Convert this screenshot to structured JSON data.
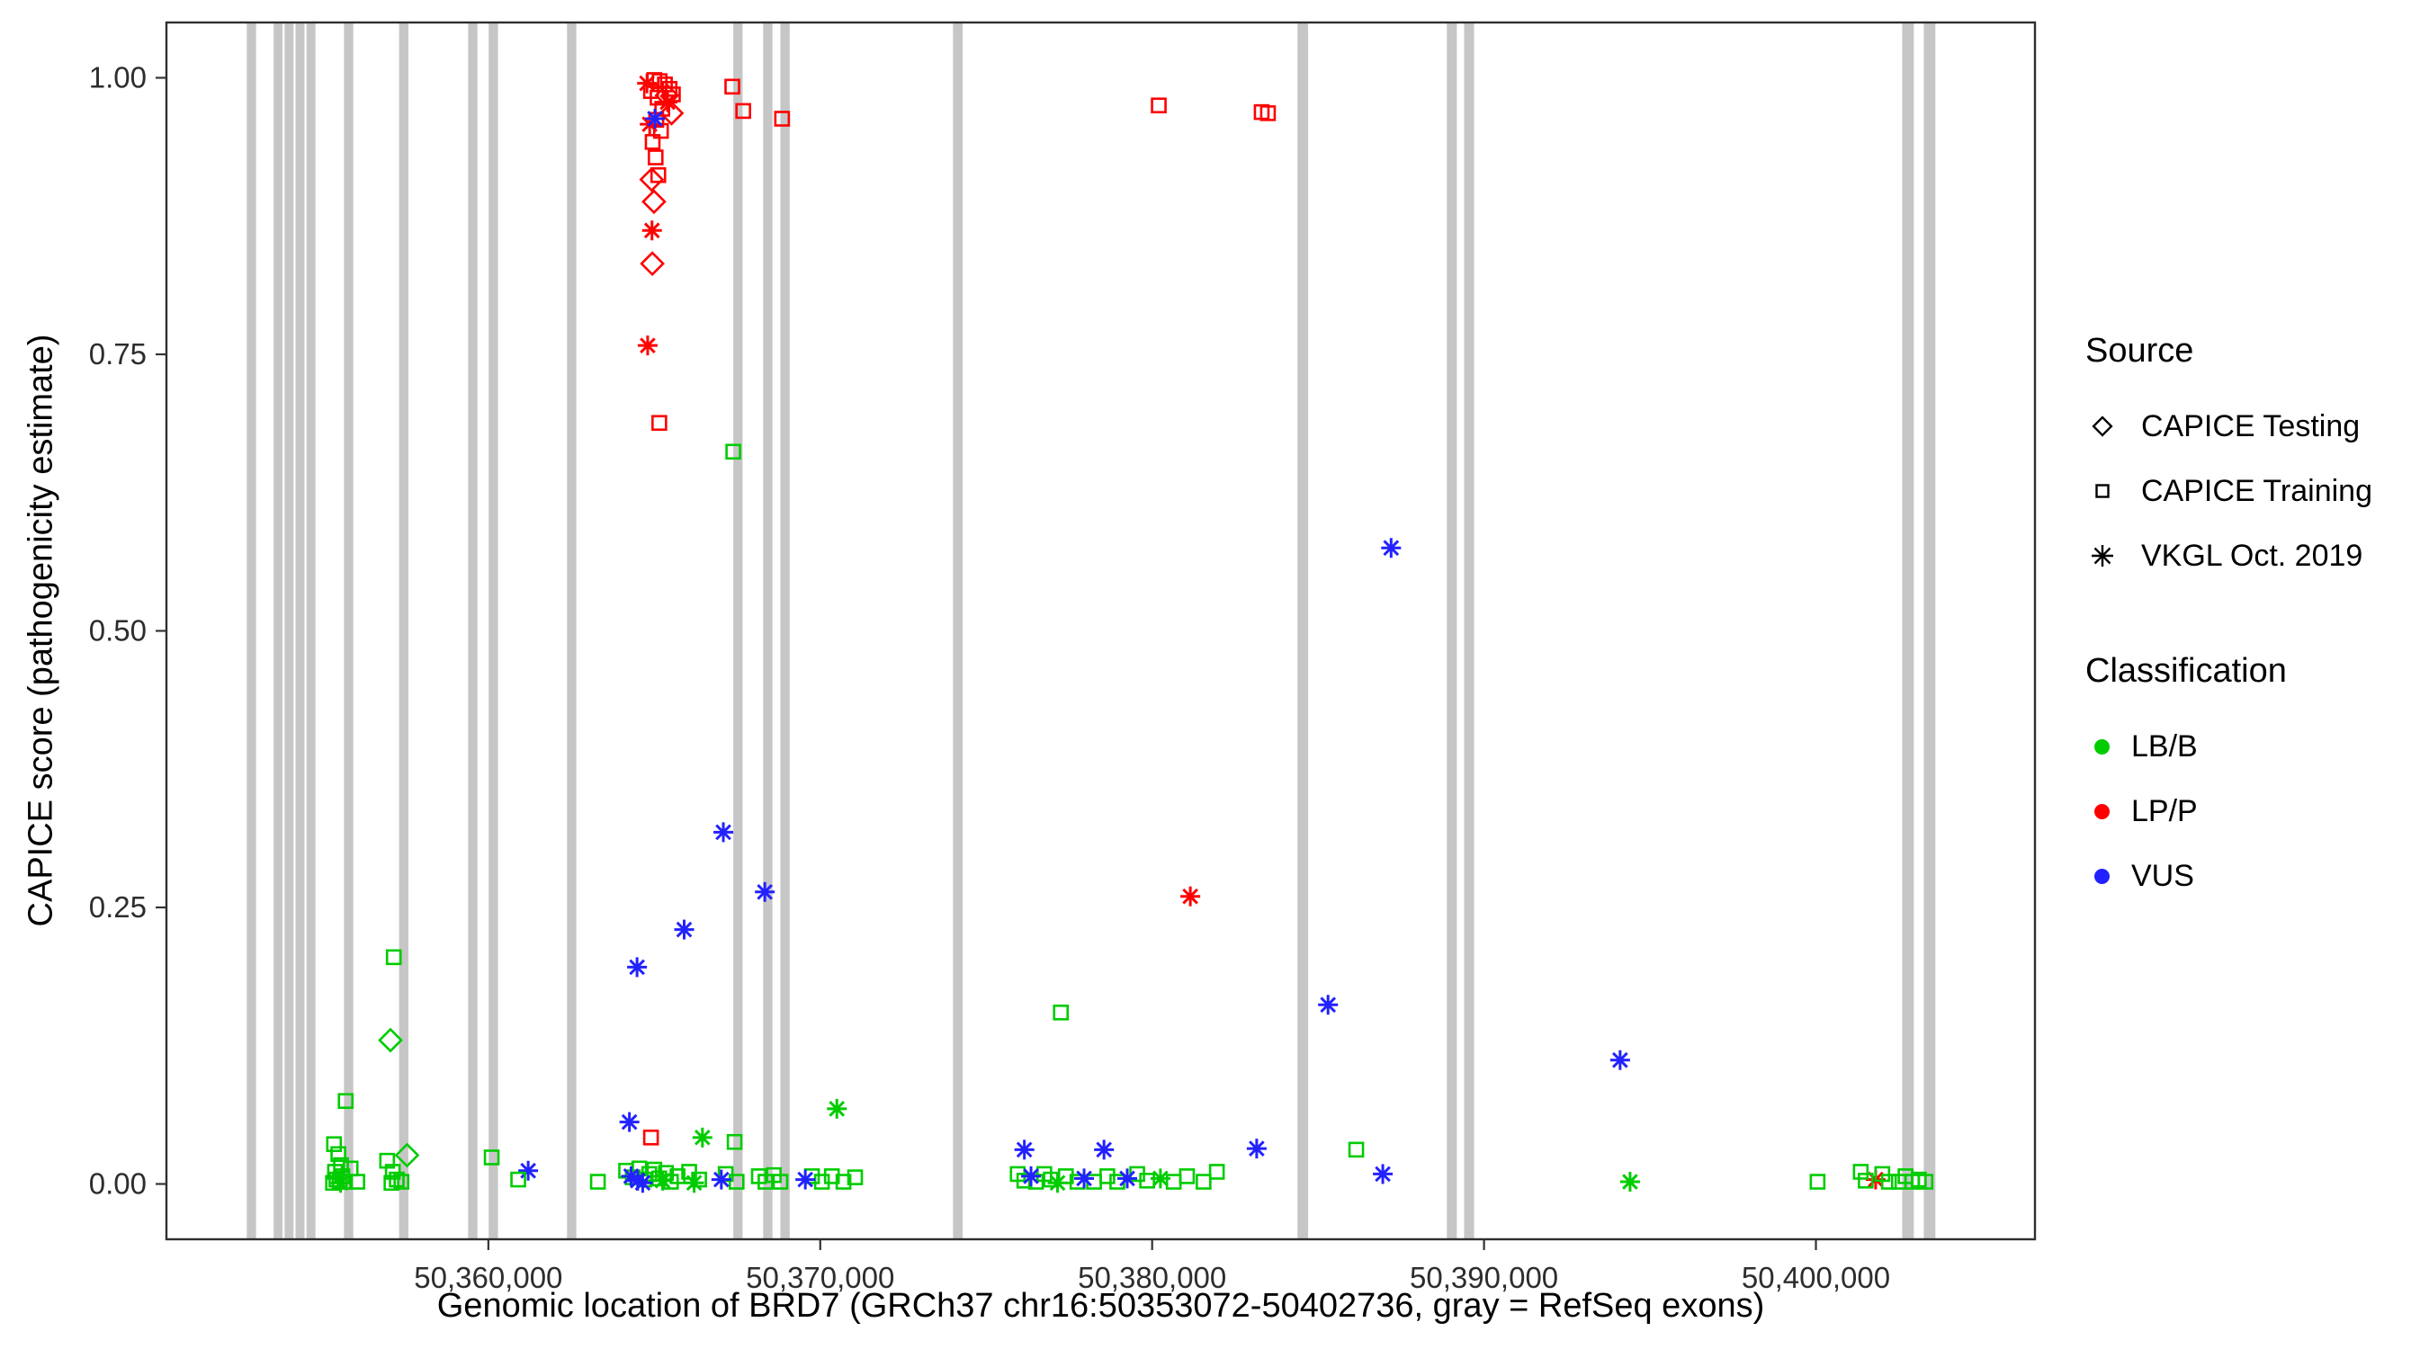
{
  "chart_data": {
    "type": "scatter",
    "title": "",
    "xlabel": "Genomic location of BRD7 (GRCh37 chr16:50353072-50402736, gray = RefSeq exons)",
    "ylabel": "CAPICE score (pathogenicity estimate)",
    "xlim": [
      50350300,
      50406600
    ],
    "ylim": [
      -0.05,
      1.05
    ],
    "grid": "off",
    "legend_position": "right",
    "x_ticks": [
      {
        "value": 50360000,
        "label": "50,360,000"
      },
      {
        "value": 50370000,
        "label": "50,370,000"
      },
      {
        "value": 50380000,
        "label": "50,380,000"
      },
      {
        "value": 50390000,
        "label": "50,390,000"
      },
      {
        "value": 50400000,
        "label": "50,400,000"
      }
    ],
    "y_ticks": [
      {
        "value": 0.0,
        "label": "0.00"
      },
      {
        "value": 0.25,
        "label": "0.25"
      },
      {
        "value": 0.5,
        "label": "0.50"
      },
      {
        "value": 0.75,
        "label": "0.75"
      },
      {
        "value": 1.0,
        "label": "1.00"
      }
    ],
    "exon_color": "#c6c6c6",
    "border_color": "#2e2e2e",
    "exons": [
      [
        50352720,
        50353000
      ],
      [
        50353530,
        50353800
      ],
      [
        50353860,
        50354130
      ],
      [
        50354190,
        50354460
      ],
      [
        50354520,
        50354790
      ],
      [
        50355650,
        50355930
      ],
      [
        50357310,
        50357590
      ],
      [
        50359390,
        50359670
      ],
      [
        50360010,
        50360290
      ],
      [
        50362370,
        50362650
      ],
      [
        50367380,
        50367660
      ],
      [
        50368280,
        50368560
      ],
      [
        50368800,
        50369080
      ],
      [
        50374000,
        50374290
      ],
      [
        50384380,
        50384700
      ],
      [
        50388880,
        50389180
      ],
      [
        50389400,
        50389700
      ],
      [
        50402600,
        50402950
      ],
      [
        50403250,
        50403600
      ]
    ],
    "source_codes": {
      "d": "CAPICE Testing",
      "s": "CAPICE Training",
      "a": "VKGL Oct. 2019"
    },
    "shape_by_code": {
      "d": "diamond",
      "s": "square",
      "a": "asterisk"
    },
    "class_codes": {
      "B": "LB/B",
      "P": "LP/P",
      "V": "VUS"
    },
    "class_colors": {
      "B": "#00cc00",
      "P": "#ff0000",
      "V": "#2222ff"
    },
    "points": [
      [
        50365000,
        0.998,
        "s",
        "P"
      ],
      [
        50365160,
        0.997,
        "s",
        "P"
      ],
      [
        50365320,
        0.994,
        "s",
        "P"
      ],
      [
        50365460,
        0.99,
        "s",
        "P"
      ],
      [
        50364900,
        0.988,
        "s",
        "P"
      ],
      [
        50365100,
        0.982,
        "s",
        "P"
      ],
      [
        50365560,
        0.985,
        "s",
        "P"
      ],
      [
        50365240,
        0.972,
        "s",
        "P"
      ],
      [
        50365060,
        0.962,
        "s",
        "P"
      ],
      [
        50365200,
        0.952,
        "s",
        "P"
      ],
      [
        50364950,
        0.942,
        "s",
        "P"
      ],
      [
        50365040,
        0.928,
        "s",
        "P"
      ],
      [
        50365120,
        0.912,
        "s",
        "P"
      ],
      [
        50365150,
        0.688,
        "s",
        "P"
      ],
      [
        50365380,
        0.984,
        "d",
        "P"
      ],
      [
        50365520,
        0.968,
        "d",
        "P"
      ],
      [
        50364920,
        0.908,
        "d",
        "P"
      ],
      [
        50364990,
        0.888,
        "d",
        "P"
      ],
      [
        50364940,
        0.832,
        "d",
        "P"
      ],
      [
        50364780,
        0.995,
        "a",
        "P"
      ],
      [
        50365400,
        0.978,
        "a",
        "P"
      ],
      [
        50364860,
        0.958,
        "a",
        "P"
      ],
      [
        50364930,
        0.862,
        "a",
        "P"
      ],
      [
        50364800,
        0.758,
        "a",
        "P"
      ],
      [
        50365020,
        0.963,
        "a",
        "V"
      ],
      [
        50367350,
        0.992,
        "s",
        "P"
      ],
      [
        50367680,
        0.97,
        "s",
        "P"
      ],
      [
        50368850,
        0.963,
        "s",
        "P"
      ],
      [
        50380200,
        0.975,
        "s",
        "P"
      ],
      [
        50383300,
        0.969,
        "s",
        "P"
      ],
      [
        50383490,
        0.968,
        "s",
        "P"
      ],
      [
        50367380,
        0.662,
        "s",
        "B"
      ],
      [
        50364480,
        0.196,
        "a",
        "V"
      ],
      [
        50365900,
        0.23,
        "a",
        "V"
      ],
      [
        50367080,
        0.318,
        "a",
        "V"
      ],
      [
        50368330,
        0.264,
        "a",
        "V"
      ],
      [
        50387200,
        0.575,
        "a",
        "V"
      ],
      [
        50385300,
        0.162,
        "a",
        "V"
      ],
      [
        50394100,
        0.112,
        "a",
        "V"
      ],
      [
        50383150,
        0.032,
        "a",
        "V"
      ],
      [
        50386950,
        0.009,
        "a",
        "V"
      ],
      [
        50364250,
        0.056,
        "a",
        "V"
      ],
      [
        50361200,
        0.012,
        "a",
        "V"
      ],
      [
        50381150,
        0.26,
        "a",
        "P"
      ],
      [
        50364900,
        0.042,
        "s",
        "P"
      ],
      [
        50401800,
        0.004,
        "a",
        "P"
      ],
      [
        50357150,
        0.205,
        "s",
        "B"
      ],
      [
        50357050,
        0.13,
        "d",
        "B"
      ],
      [
        50355700,
        0.075,
        "s",
        "B"
      ],
      [
        50377250,
        0.155,
        "s",
        "B"
      ],
      [
        50370500,
        0.068,
        "a",
        "B"
      ],
      [
        50366450,
        0.042,
        "a",
        "B"
      ],
      [
        50367420,
        0.038,
        "s",
        "B"
      ],
      [
        50386150,
        0.031,
        "s",
        "B"
      ],
      [
        50360100,
        0.024,
        "s",
        "B"
      ],
      [
        50357550,
        0.026,
        "d",
        "B"
      ],
      [
        50355350,
        0.036,
        "s",
        "B"
      ],
      [
        50355480,
        0.027,
        "s",
        "B"
      ],
      [
        50355560,
        0.017,
        "s",
        "B"
      ],
      [
        50355380,
        0.011,
        "s",
        "B"
      ],
      [
        50355600,
        0.007,
        "s",
        "B"
      ],
      [
        50355420,
        0.004,
        "s",
        "B"
      ],
      [
        50355520,
        0.002,
        "s",
        "B"
      ],
      [
        50355680,
        0.002,
        "s",
        "B"
      ],
      [
        50355320,
        0.001,
        "s",
        "B"
      ],
      [
        50355850,
        0.014,
        "s",
        "B"
      ],
      [
        50356050,
        0.002,
        "s",
        "B"
      ],
      [
        50355550,
        0.001,
        "a",
        "B"
      ],
      [
        50356950,
        0.021,
        "s",
        "B"
      ],
      [
        50357120,
        0.011,
        "s",
        "B"
      ],
      [
        50357240,
        0.004,
        "s",
        "B"
      ],
      [
        50357380,
        0.002,
        "s",
        "B"
      ],
      [
        50357080,
        0.001,
        "s",
        "B"
      ],
      [
        50360900,
        0.004,
        "s",
        "B"
      ],
      [
        50363300,
        0.002,
        "s",
        "B"
      ],
      [
        50364150,
        0.012,
        "s",
        "B"
      ],
      [
        50364350,
        0.006,
        "s",
        "B"
      ],
      [
        50364550,
        0.014,
        "s",
        "B"
      ],
      [
        50364700,
        0.004,
        "s",
        "B"
      ],
      [
        50364850,
        0.009,
        "s",
        "B"
      ],
      [
        50365000,
        0.013,
        "s",
        "B"
      ],
      [
        50365150,
        0.005,
        "s",
        "B"
      ],
      [
        50365350,
        0.01,
        "s",
        "B"
      ],
      [
        50365500,
        0.002,
        "s",
        "B"
      ],
      [
        50365700,
        0.007,
        "s",
        "B"
      ],
      [
        50366050,
        0.011,
        "s",
        "B"
      ],
      [
        50366350,
        0.004,
        "s",
        "B"
      ],
      [
        50367150,
        0.009,
        "s",
        "B"
      ],
      [
        50367480,
        0.002,
        "s",
        "B"
      ],
      [
        50365250,
        0.003,
        "a",
        "B"
      ],
      [
        50366200,
        0.001,
        "a",
        "B"
      ],
      [
        50364300,
        0.007,
        "a",
        "V"
      ],
      [
        50364500,
        0.003,
        "a",
        "V"
      ],
      [
        50364650,
        0.001,
        "a",
        "V"
      ],
      [
        50367020,
        0.004,
        "a",
        "V"
      ],
      [
        50368150,
        0.007,
        "s",
        "B"
      ],
      [
        50368350,
        0.002,
        "s",
        "B"
      ],
      [
        50368600,
        0.008,
        "s",
        "B"
      ],
      [
        50368800,
        0.002,
        "s",
        "B"
      ],
      [
        50369750,
        0.007,
        "s",
        "B"
      ],
      [
        50370050,
        0.002,
        "s",
        "B"
      ],
      [
        50370350,
        0.007,
        "s",
        "B"
      ],
      [
        50370700,
        0.002,
        "s",
        "B"
      ],
      [
        50371050,
        0.006,
        "s",
        "B"
      ],
      [
        50369550,
        0.004,
        "a",
        "V"
      ],
      [
        50375950,
        0.009,
        "s",
        "B"
      ],
      [
        50376150,
        0.003,
        "s",
        "B"
      ],
      [
        50376500,
        0.002,
        "s",
        "B"
      ],
      [
        50376750,
        0.009,
        "s",
        "B"
      ],
      [
        50376950,
        0.004,
        "s",
        "B"
      ],
      [
        50377400,
        0.007,
        "s",
        "B"
      ],
      [
        50377750,
        0.002,
        "s",
        "B"
      ],
      [
        50378250,
        0.002,
        "s",
        "B"
      ],
      [
        50378650,
        0.007,
        "s",
        "B"
      ],
      [
        50378950,
        0.002,
        "s",
        "B"
      ],
      [
        50379550,
        0.009,
        "s",
        "B"
      ],
      [
        50379850,
        0.003,
        "s",
        "B"
      ],
      [
        50380650,
        0.002,
        "s",
        "B"
      ],
      [
        50381050,
        0.007,
        "s",
        "B"
      ],
      [
        50381550,
        0.002,
        "s",
        "B"
      ],
      [
        50381950,
        0.011,
        "s",
        "B"
      ],
      [
        50377150,
        0.001,
        "a",
        "B"
      ],
      [
        50380250,
        0.005,
        "a",
        "B"
      ],
      [
        50376350,
        0.007,
        "a",
        "V"
      ],
      [
        50377950,
        0.005,
        "a",
        "V"
      ],
      [
        50379250,
        0.005,
        "a",
        "V"
      ],
      [
        50376150,
        0.031,
        "a",
        "V"
      ],
      [
        50378550,
        0.031,
        "a",
        "V"
      ],
      [
        50394400,
        0.002,
        "a",
        "B"
      ],
      [
        50400050,
        0.002,
        "s",
        "B"
      ],
      [
        50401350,
        0.011,
        "s",
        "B"
      ],
      [
        50401500,
        0.003,
        "s",
        "B"
      ],
      [
        50402000,
        0.009,
        "s",
        "B"
      ],
      [
        50402200,
        0.002,
        "s",
        "B"
      ],
      [
        50402500,
        0.002,
        "s",
        "B"
      ],
      [
        50402700,
        0.007,
        "s",
        "B"
      ],
      [
        50402900,
        0.002,
        "s",
        "B"
      ],
      [
        50403100,
        0.004,
        "s",
        "B"
      ],
      [
        50403300,
        0.002,
        "s",
        "B"
      ]
    ]
  },
  "legend": {
    "source": {
      "title": "Source",
      "items": [
        {
          "label": "CAPICE Testing",
          "shape": "diamond"
        },
        {
          "label": "CAPICE Training",
          "shape": "square"
        },
        {
          "label": "VKGL Oct. 2019",
          "shape": "asterisk"
        }
      ]
    },
    "classification": {
      "title": "Classification",
      "items": [
        {
          "label": "LB/B",
          "color": "#00cc00"
        },
        {
          "label": "LP/P",
          "color": "#ff0000"
        },
        {
          "label": "VUS",
          "color": "#2222ff"
        }
      ]
    }
  },
  "axes": {
    "x_title": "Genomic location of BRD7 (GRCh37 chr16:50353072-50402736, gray = RefSeq exons)",
    "y_title": "CAPICE score (pathogenicity estimate)"
  }
}
